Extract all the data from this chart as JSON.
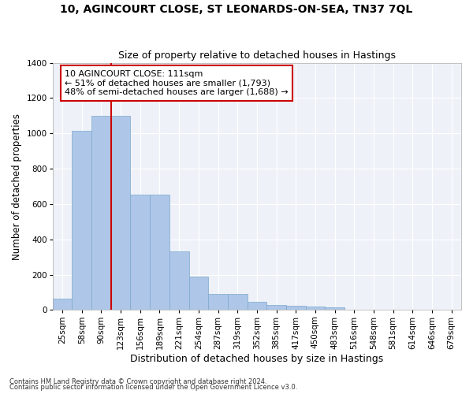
{
  "title": "10, AGINCOURT CLOSE, ST LEONARDS-ON-SEA, TN37 7QL",
  "subtitle": "Size of property relative to detached houses in Hastings",
  "xlabel": "Distribution of detached houses by size in Hastings",
  "ylabel": "Number of detached properties",
  "categories": [
    "25sqm",
    "58sqm",
    "90sqm",
    "123sqm",
    "156sqm",
    "189sqm",
    "221sqm",
    "254sqm",
    "287sqm",
    "319sqm",
    "352sqm",
    "385sqm",
    "417sqm",
    "450sqm",
    "483sqm",
    "516sqm",
    "548sqm",
    "581sqm",
    "614sqm",
    "646sqm",
    "679sqm"
  ],
  "values": [
    65,
    1015,
    1100,
    1100,
    655,
    655,
    330,
    190,
    90,
    90,
    45,
    27,
    25,
    22,
    15,
    0,
    0,
    0,
    0,
    0,
    0
  ],
  "bar_color": "#aec6e8",
  "bar_edge_color": "#7aa8cc",
  "vline_position": 2.5,
  "annotation_text": "10 AGINCOURT CLOSE: 111sqm\n← 51% of detached houses are smaller (1,793)\n48% of semi-detached houses are larger (1,688) →",
  "ylim": [
    0,
    1400
  ],
  "yticks": [
    0,
    200,
    400,
    600,
    800,
    1000,
    1200,
    1400
  ],
  "background_color": "#eef2f8",
  "grid_color": "#ffffff",
  "footer1": "Contains HM Land Registry data © Crown copyright and database right 2024.",
  "footer2": "Contains public sector information licensed under the Open Government Licence v3.0.",
  "title_fontsize": 10,
  "subtitle_fontsize": 9,
  "axis_label_fontsize": 9,
  "tick_fontsize": 7.5,
  "ylabel_fontsize": 8.5
}
